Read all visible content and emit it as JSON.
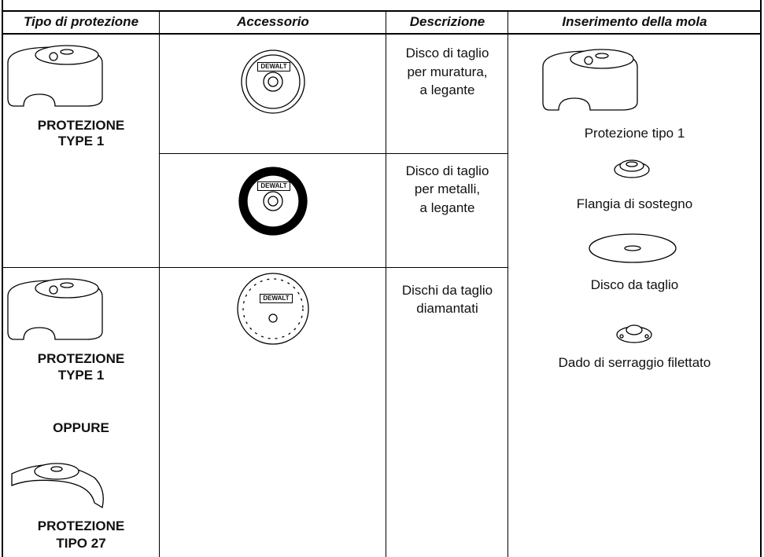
{
  "header": {
    "columns": [
      "Tipo di protezione",
      "Accessorio",
      "Descrizione",
      "Inserimento della mola"
    ]
  },
  "rows": [
    {
      "guard": [
        "PROTEZIONE",
        "TYPE 1"
      ],
      "description": [
        "Disco di taglio",
        "per muratura,",
        "a legante"
      ]
    },
    {
      "description": [
        "Disco di taglio",
        "per metalli,",
        "a legante"
      ]
    },
    {
      "guard": [
        "PROTEZIONE",
        "TYPE 1"
      ],
      "or": "OPPURE",
      "guard2": [
        "PROTEZIONE",
        "TIPO 27"
      ],
      "description": [
        "Dischi da taglio",
        "diamantati"
      ]
    }
  ],
  "assembly": [
    "Protezione tipo 1",
    "Flangia di sostegno",
    "Disco da taglio",
    "Dado di serraggio filettato"
  ],
  "brand": "DEWALT"
}
